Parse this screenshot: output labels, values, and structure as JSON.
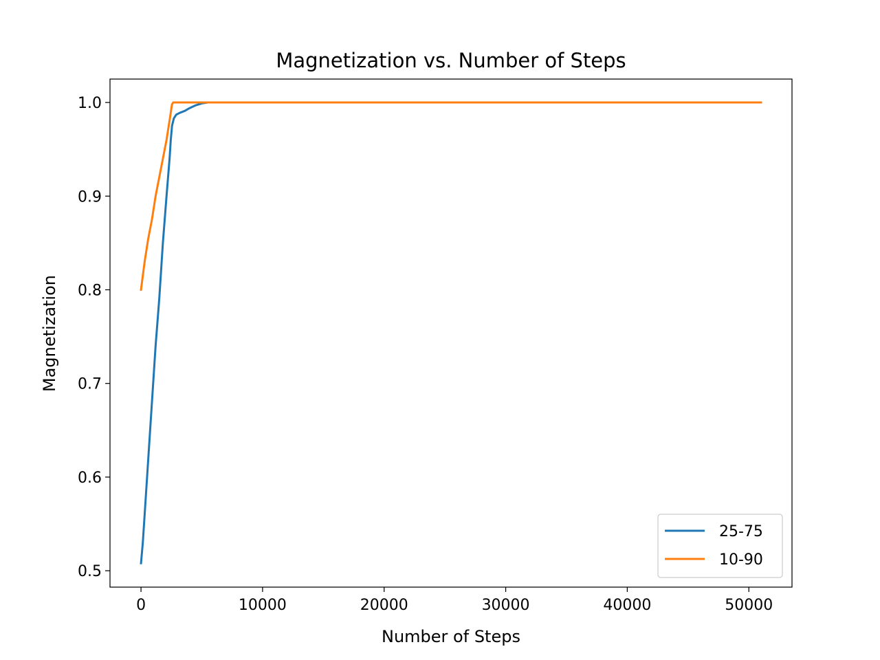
{
  "chart_data": {
    "type": "line",
    "title": "Magnetization vs. Number of Steps",
    "xlabel": "Number of Steps",
    "ylabel": "Magnetization",
    "xlim": [
      -2550,
      53550
    ],
    "ylim": [
      0.4825,
      1.025
    ],
    "xticks": [
      0,
      10000,
      20000,
      30000,
      40000,
      50000
    ],
    "xtick_labels": [
      "0",
      "10000",
      "20000",
      "30000",
      "40000",
      "50000"
    ],
    "yticks": [
      0.5,
      0.6,
      0.7,
      0.8,
      0.9,
      1.0
    ],
    "ytick_labels": [
      "0.5",
      "0.6",
      "0.7",
      "0.8",
      "0.9",
      "1.0"
    ],
    "grid": false,
    "legend_position": "lower-right",
    "series": [
      {
        "name": "25-75",
        "color": "#1f77b4",
        "x": [
          0,
          150,
          300,
          600,
          900,
          1200,
          1500,
          1800,
          2100,
          2350,
          2450,
          2550,
          2700,
          2900,
          3200,
          3600,
          4000,
          4500,
          5000,
          5500,
          6000,
          10000,
          20000,
          30000,
          40000,
          51000
        ],
        "y": [
          0.508,
          0.53,
          0.56,
          0.62,
          0.68,
          0.74,
          0.79,
          0.85,
          0.9,
          0.94,
          0.96,
          0.975,
          0.983,
          0.987,
          0.989,
          0.991,
          0.994,
          0.997,
          0.999,
          1.0,
          1.0,
          1.0,
          1.0,
          1.0,
          1.0,
          1.0
        ]
      },
      {
        "name": "10-90",
        "color": "#ff7f0e",
        "x": [
          0,
          100,
          300,
          600,
          900,
          1200,
          1500,
          1800,
          2100,
          2400,
          2550,
          2650,
          2800,
          3500,
          10000,
          20000,
          30000,
          40000,
          51000
        ],
        "y": [
          0.8,
          0.81,
          0.83,
          0.855,
          0.875,
          0.9,
          0.92,
          0.94,
          0.96,
          0.985,
          0.998,
          1.0,
          1.0,
          1.0,
          1.0,
          1.0,
          1.0,
          1.0,
          1.0
        ]
      }
    ]
  }
}
